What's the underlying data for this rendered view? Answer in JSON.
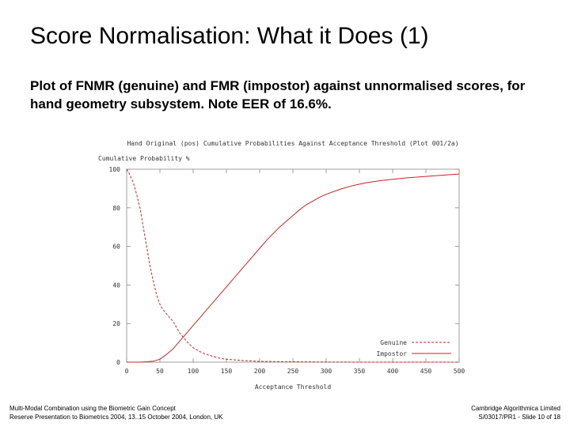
{
  "slide": {
    "title": "Score Normalisation: What it Does (1)",
    "subtitle": "Plot of FNMR (genuine) and FMR (impostor) against unnormalised scores, for hand geometry subsystem.  Note EER of 16.6%."
  },
  "footer": {
    "left_line1": "Multi-Modal Combination using the Biometric Gain Concept",
    "left_line2": "Reserve Presentation to Biometrics 2004, 13..15 October 2004, London, UK",
    "right_line1": "Cambridge Algorithmica Limited",
    "right_line2": "S/03017/PR1 - Slide 10 of 18"
  },
  "chart_data": {
    "type": "line",
    "title": "Hand Original (pos) Cumulative Probabilities Against Acceptance Threshold (Plot 001/2a)",
    "ylabel": "Cumulative Probability %",
    "xlabel": "Acceptance Threshold",
    "xlim": [
      0,
      500
    ],
    "ylim": [
      0,
      100
    ],
    "xticks": [
      0,
      50,
      100,
      150,
      200,
      250,
      300,
      350,
      400,
      450,
      500
    ],
    "yticks": [
      0,
      20,
      40,
      60,
      80,
      100
    ],
    "legend_position": "bottom-right",
    "series": [
      {
        "name": "Genuine",
        "color": "#cc2222",
        "dash": "dashed",
        "x": [
          0,
          5,
          10,
          15,
          20,
          25,
          30,
          35,
          40,
          45,
          50,
          55,
          60,
          65,
          70,
          75,
          80,
          85,
          90,
          95,
          100,
          110,
          120,
          130,
          140,
          150,
          175,
          200,
          250,
          300,
          350,
          400,
          450,
          500
        ],
        "y": [
          100,
          97,
          93,
          87,
          80,
          70,
          60,
          50,
          42,
          35,
          30,
          27,
          25,
          23,
          21,
          18,
          15,
          13,
          11,
          9,
          7.5,
          5.5,
          4,
          3,
          2,
          1.5,
          0.8,
          0.4,
          0.2,
          0.1,
          0,
          0,
          0,
          0
        ]
      },
      {
        "name": "Impostor",
        "color": "#cc2222",
        "dash": "solid",
        "x": [
          0,
          20,
          30,
          40,
          50,
          60,
          70,
          80,
          90,
          100,
          110,
          120,
          130,
          140,
          150,
          160,
          170,
          180,
          190,
          200,
          210,
          220,
          230,
          240,
          250,
          260,
          270,
          280,
          290,
          300,
          320,
          340,
          360,
          380,
          400,
          420,
          440,
          460,
          480,
          500
        ],
        "y": [
          0,
          0,
          0.2,
          0.5,
          1.5,
          4,
          7,
          11,
          15,
          19,
          23,
          27,
          31,
          35,
          39,
          43,
          47,
          51,
          55,
          59,
          63,
          66.5,
          70,
          73,
          76,
          79,
          81.5,
          83.5,
          85.5,
          87,
          89.5,
          91.5,
          93,
          94,
          94.8,
          95.5,
          96,
          96.5,
          97,
          97.5
        ]
      }
    ]
  }
}
